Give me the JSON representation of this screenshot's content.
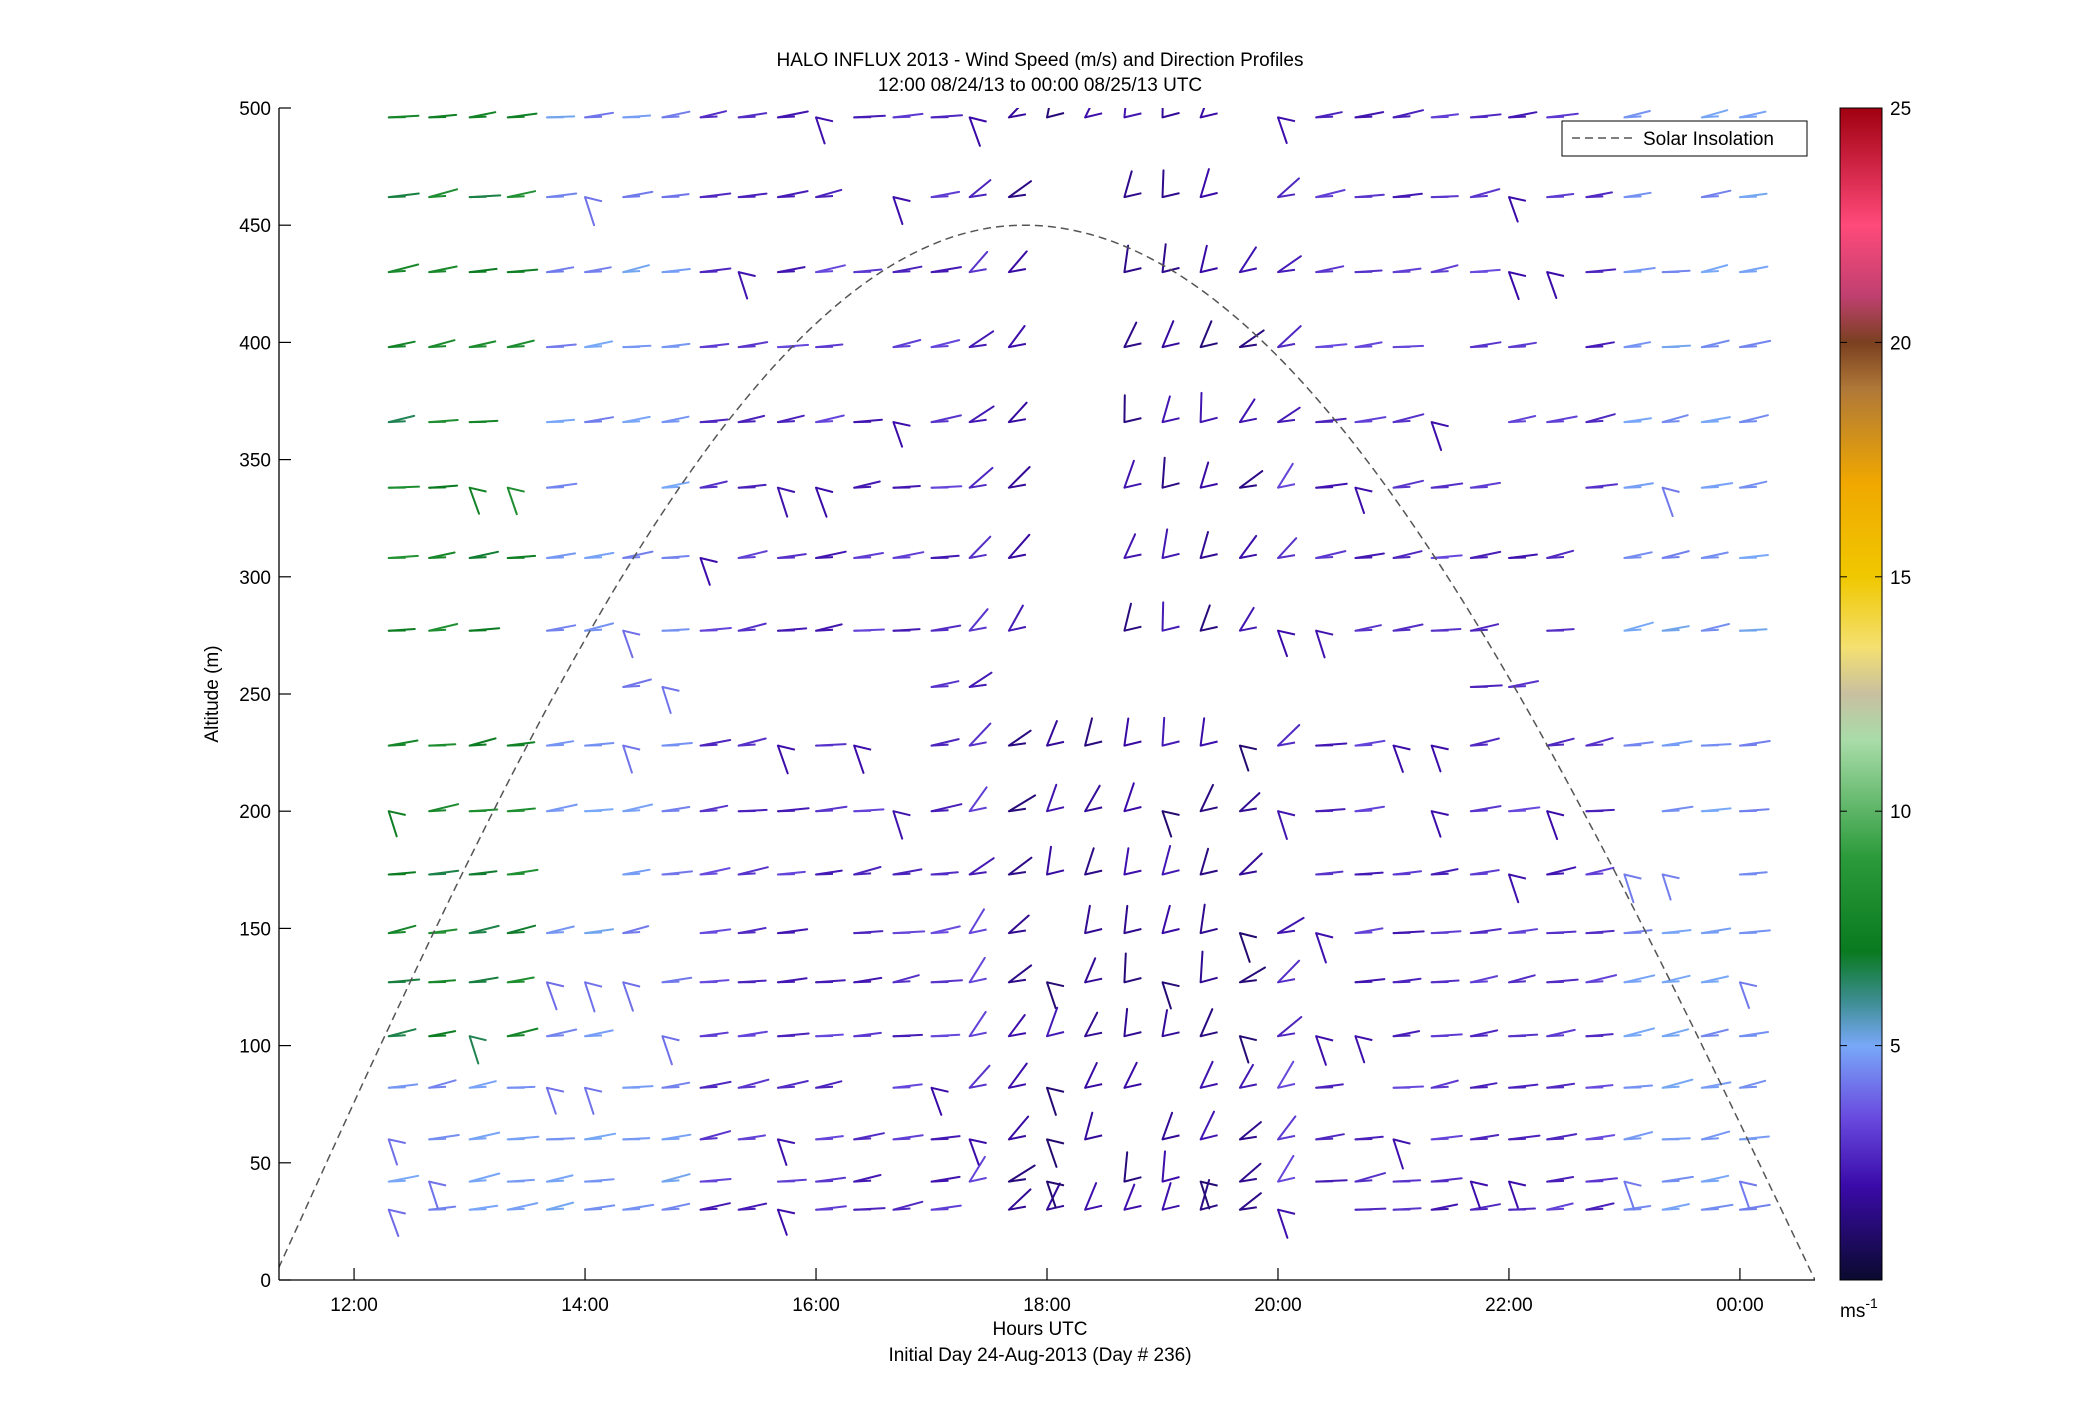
{
  "chart_data": {
    "type": "quiver",
    "title": "HALO INFLUX 2013 - Wind Speed (m/s) and Direction Profiles",
    "subtitle": "12:00 08/24/13 to 00:00 08/25/13  UTC",
    "xlabel": "Hours UTC",
    "xlabel2": "Initial Day 24-Aug-2013 (Day # 236)",
    "ylabel": "Altitude (m)",
    "xlim": [
      11.35,
      24.65
    ],
    "ylim": [
      0,
      500
    ],
    "xticks": [
      12,
      14,
      16,
      18,
      20,
      22,
      24
    ],
    "xtick_labels": [
      "12:00",
      "14:00",
      "16:00",
      "18:00",
      "20:00",
      "22:00",
      "00:00"
    ],
    "yticks": [
      0,
      50,
      100,
      150,
      200,
      250,
      300,
      350,
      400,
      450,
      500
    ],
    "ytick_labels": [
      "0",
      "50",
      "100",
      "150",
      "200",
      "250",
      "300",
      "350",
      "400",
      "450",
      "500"
    ],
    "grid": false,
    "legend": {
      "entries": [
        "Solar Insolation"
      ],
      "placement": "top-right"
    },
    "solar_insolation": {
      "peak_x": 17.8,
      "peak_y": 450,
      "zero_x_start": 11.3,
      "zero_x_end": 24.65,
      "style": "dashed"
    },
    "colorbar": {
      "range": [
        0,
        25
      ],
      "ticks": [
        5,
        10,
        15,
        20,
        25
      ],
      "tick_labels": [
        "5",
        "10",
        "15",
        "20",
        "25"
      ],
      "unit_label": "ms",
      "unit_exponent": "-1",
      "colormap": [
        {
          "v": 0,
          "c": "#0a0a2e"
        },
        {
          "v": 2,
          "c": "#3a0aa8"
        },
        {
          "v": 3.5,
          "c": "#6a4ce0"
        },
        {
          "v": 5,
          "c": "#78a8f8"
        },
        {
          "v": 6,
          "c": "#3a8c8c"
        },
        {
          "v": 7,
          "c": "#0a7a20"
        },
        {
          "v": 9,
          "c": "#2a9a3a"
        },
        {
          "v": 11.5,
          "c": "#a8dca8"
        },
        {
          "v": 12.5,
          "c": "#c8c0a0"
        },
        {
          "v": 13.5,
          "c": "#f4e070"
        },
        {
          "v": 15,
          "c": "#f0c800"
        },
        {
          "v": 17,
          "c": "#f0a800"
        },
        {
          "v": 19,
          "c": "#b07838"
        },
        {
          "v": 20,
          "c": "#7a4020"
        },
        {
          "v": 21,
          "c": "#c04070"
        },
        {
          "v": 22.5,
          "c": "#ff4a7a"
        },
        {
          "v": 25,
          "c": "#a00010"
        }
      ]
    },
    "wind_profiles": {
      "note": "sampled wind barbs: time (h UTC), altitude levels (m), and per-level speed (m/s) / direction (deg from north)",
      "levels": [
        30,
        42,
        60,
        82,
        104,
        127,
        148,
        173,
        200,
        228,
        253,
        277,
        308,
        338,
        366,
        398,
        430,
        462,
        496
      ],
      "times": [
        12.3,
        12.65,
        13.0,
        13.33,
        13.67,
        14.0,
        14.33,
        14.67,
        15.0,
        15.33,
        15.67,
        16.0,
        16.33,
        16.67,
        17.0,
        17.33,
        17.67,
        18.0,
        18.33,
        18.67,
        19.0,
        19.33,
        19.67,
        20.0,
        20.33,
        20.67,
        21.0,
        21.33,
        21.67,
        22.0,
        22.33,
        22.67,
        23.0,
        23.33,
        23.67,
        24.0
      ]
    }
  }
}
